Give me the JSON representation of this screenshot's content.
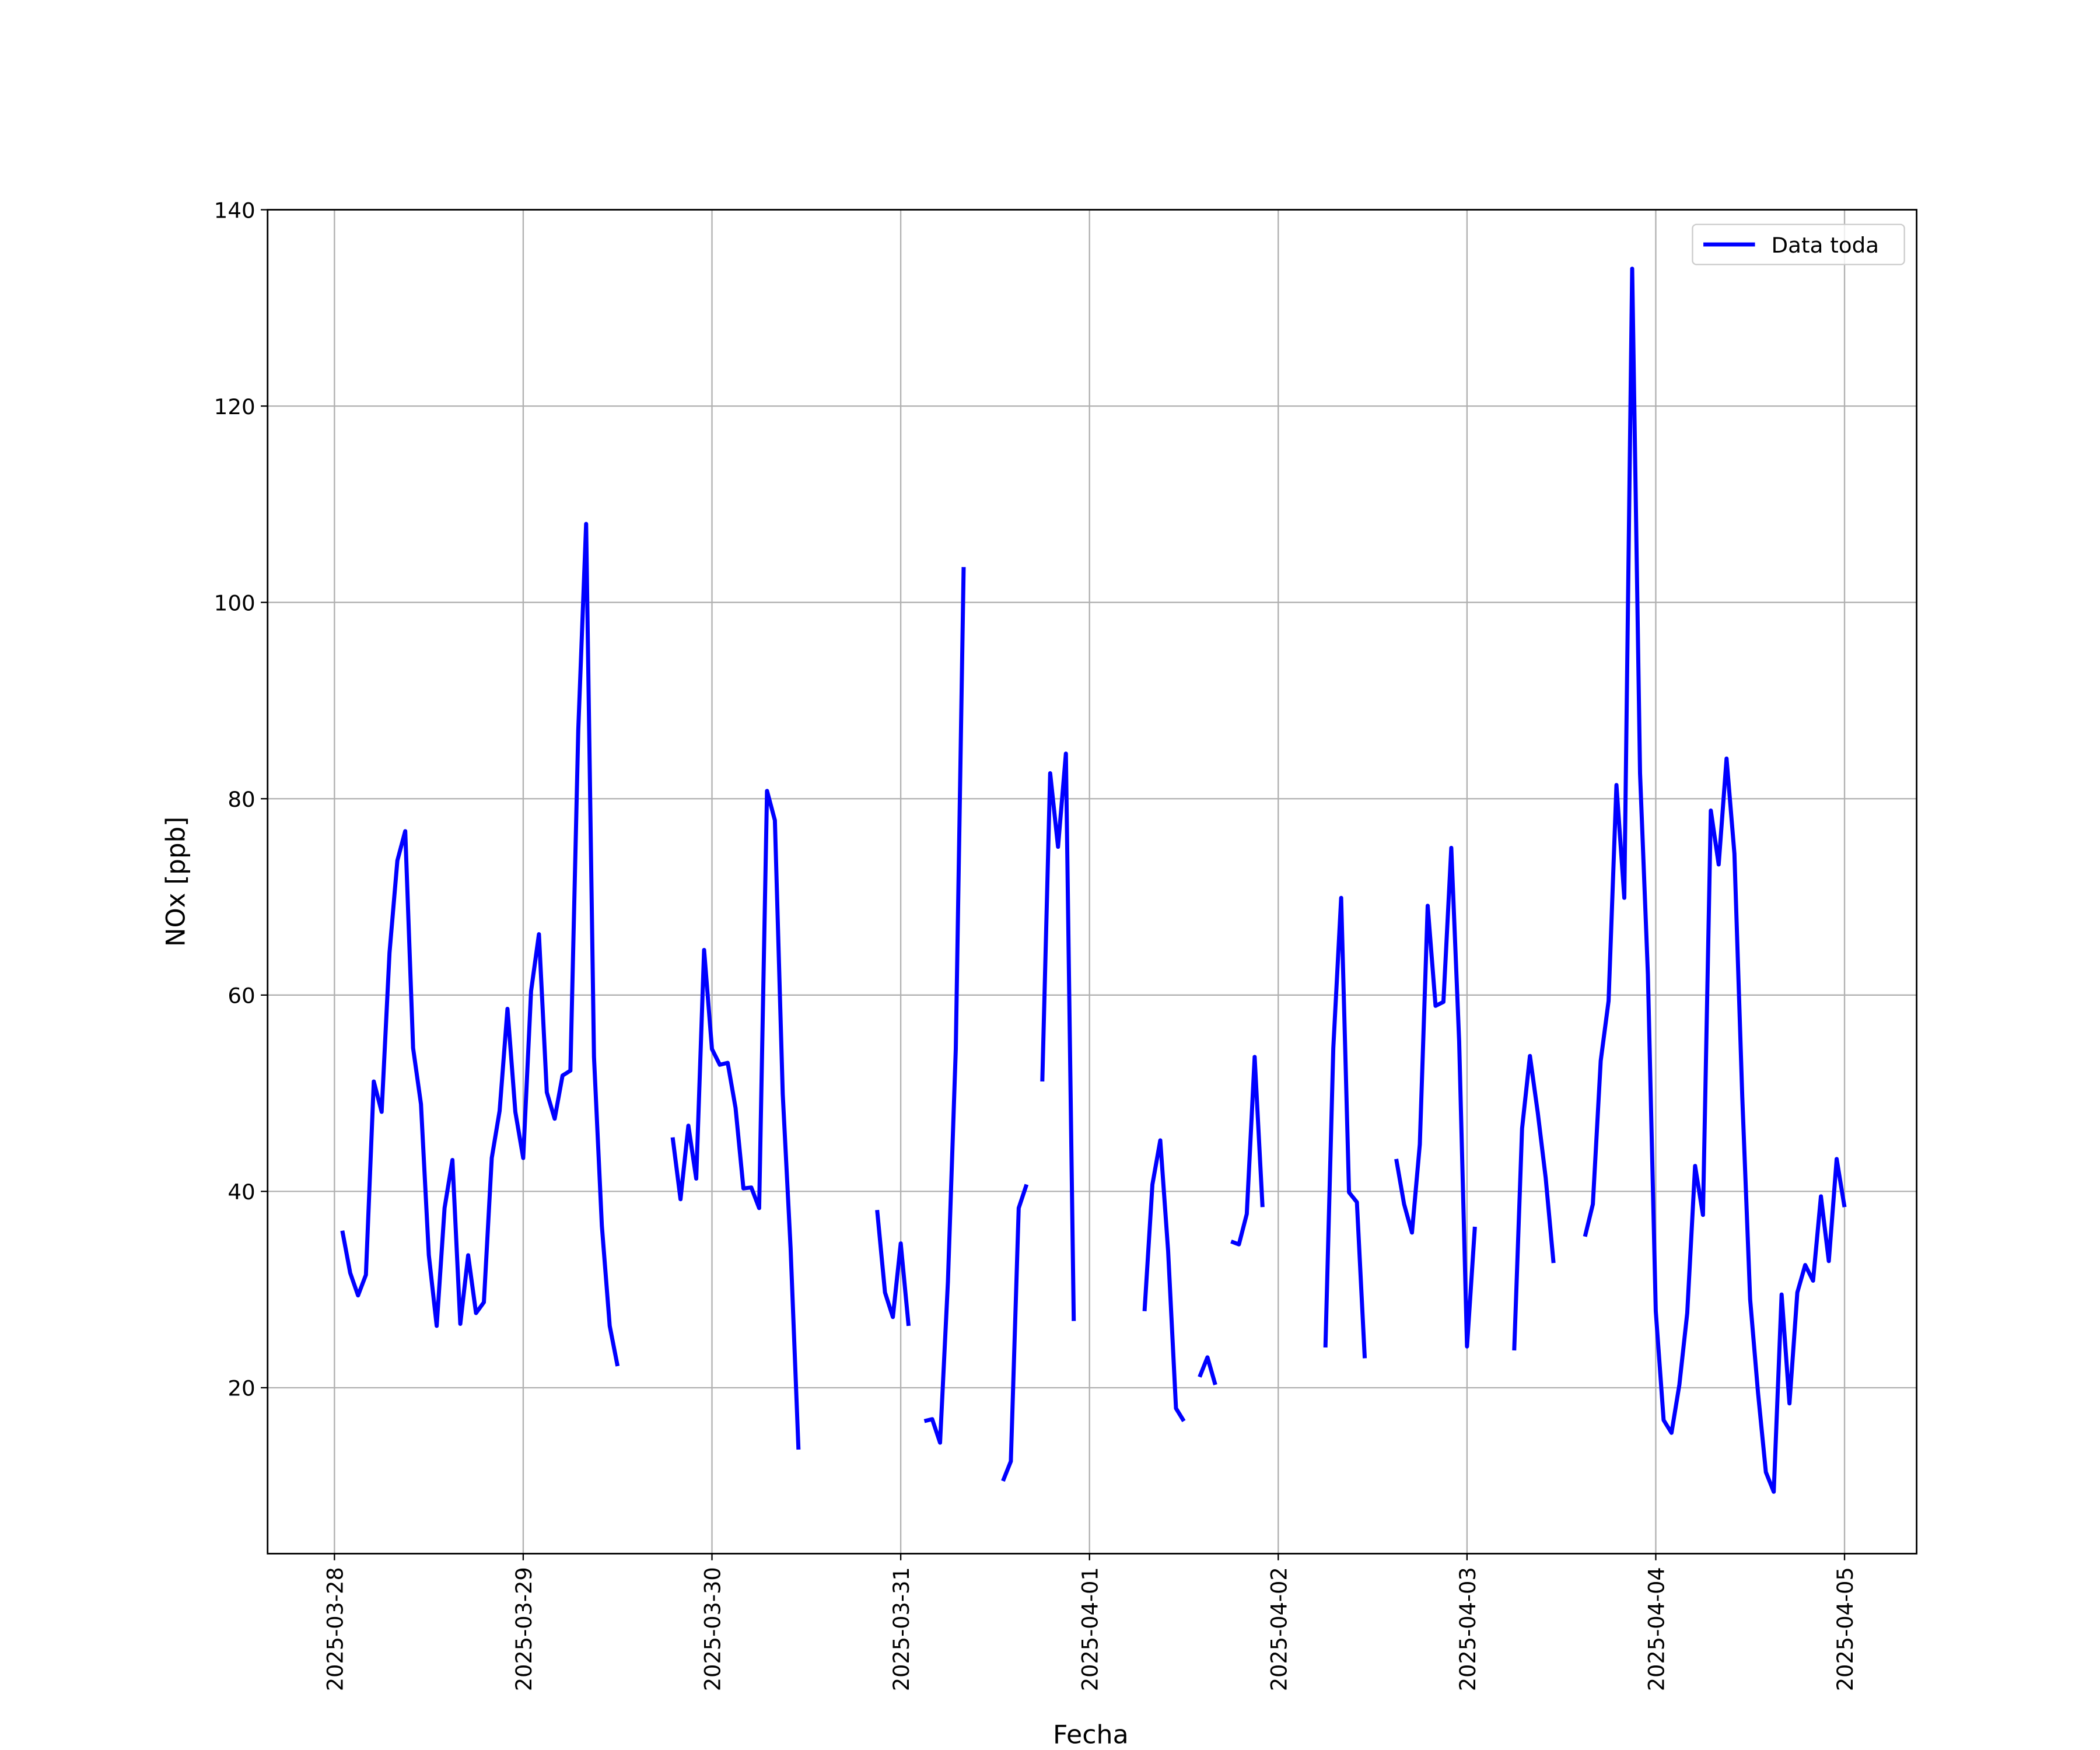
{
  "chart_data": {
    "type": "line",
    "xlabel": "Fecha",
    "ylabel": "NOx [ppb]",
    "x": [
      "2025-03-28 01:00",
      "2025-03-28 02:00",
      "2025-03-28 03:00",
      "2025-03-28 04:00",
      "2025-03-28 05:00",
      "2025-03-28 06:00",
      "2025-03-28 07:00",
      "2025-03-28 08:00",
      "2025-03-28 09:00",
      "2025-03-28 10:00",
      "2025-03-28 11:00",
      "2025-03-28 12:00",
      "2025-03-28 13:00",
      "2025-03-28 14:00",
      "2025-03-28 15:00",
      "2025-03-28 16:00",
      "2025-03-28 17:00",
      "2025-03-28 18:00",
      "2025-03-28 19:00",
      "2025-03-28 20:00",
      "2025-03-28 21:00",
      "2025-03-28 22:00",
      "2025-03-28 23:00",
      "2025-03-29 00:00",
      "2025-03-29 01:00",
      "2025-03-29 02:00",
      "2025-03-29 03:00",
      "2025-03-29 04:00",
      "2025-03-29 05:00",
      "2025-03-29 06:00",
      "2025-03-29 07:00",
      "2025-03-29 08:00",
      "2025-03-29 09:00",
      "2025-03-29 10:00",
      "2025-03-29 11:00",
      "2025-03-29 12:00",
      "2025-03-29 13:00",
      "2025-03-29 14:00",
      "2025-03-29 15:00",
      "2025-03-29 16:00",
      "2025-03-29 17:00",
      "2025-03-29 18:00",
      "2025-03-29 19:00",
      "2025-03-29 20:00",
      "2025-03-29 21:00",
      "2025-03-29 22:00",
      "2025-03-29 23:00",
      "2025-03-30 00:00",
      "2025-03-30 01:00",
      "2025-03-30 02:00",
      "2025-03-30 03:00",
      "2025-03-30 04:00",
      "2025-03-30 05:00",
      "2025-03-30 06:00",
      "2025-03-30 07:00",
      "2025-03-30 08:00",
      "2025-03-30 09:00",
      "2025-03-30 10:00",
      "2025-03-30 11:00",
      "2025-03-30 12:00",
      "2025-03-30 13:00",
      "2025-03-30 14:00",
      "2025-03-30 15:00",
      "2025-03-30 16:00",
      "2025-03-30 17:00",
      "2025-03-30 18:00",
      "2025-03-30 19:00",
      "2025-03-30 20:00",
      "2025-03-30 21:00",
      "2025-03-30 22:00",
      "2025-03-30 23:00",
      "2025-03-31 00:00",
      "2025-03-31 01:00",
      "2025-03-31 02:00",
      "2025-03-31 03:00",
      "2025-03-31 04:00",
      "2025-03-31 05:00",
      "2025-03-31 06:00",
      "2025-03-31 07:00",
      "2025-03-31 08:00",
      "2025-03-31 09:00",
      "2025-03-31 10:00",
      "2025-03-31 11:00",
      "2025-03-31 12:00",
      "2025-03-31 13:00",
      "2025-03-31 14:00",
      "2025-03-31 15:00",
      "2025-03-31 16:00",
      "2025-03-31 17:00",
      "2025-03-31 18:00",
      "2025-03-31 19:00",
      "2025-03-31 20:00",
      "2025-03-31 21:00",
      "2025-03-31 22:00",
      "2025-03-31 23:00",
      "2025-04-01 00:00",
      "2025-04-01 01:00",
      "2025-04-01 02:00",
      "2025-04-01 03:00",
      "2025-04-01 04:00",
      "2025-04-01 05:00",
      "2025-04-01 06:00",
      "2025-04-01 07:00",
      "2025-04-01 08:00",
      "2025-04-01 09:00",
      "2025-04-01 10:00",
      "2025-04-01 11:00",
      "2025-04-01 12:00",
      "2025-04-01 13:00",
      "2025-04-01 14:00",
      "2025-04-01 15:00",
      "2025-04-01 16:00",
      "2025-04-01 17:00",
      "2025-04-01 18:00",
      "2025-04-01 19:00",
      "2025-04-01 20:00",
      "2025-04-01 21:00",
      "2025-04-01 22:00",
      "2025-04-01 23:00",
      "2025-04-02 00:00",
      "2025-04-02 01:00",
      "2025-04-02 02:00",
      "2025-04-02 03:00",
      "2025-04-02 04:00",
      "2025-04-02 05:00",
      "2025-04-02 06:00",
      "2025-04-02 07:00",
      "2025-04-02 08:00",
      "2025-04-02 09:00",
      "2025-04-02 10:00",
      "2025-04-02 11:00",
      "2025-04-02 12:00",
      "2025-04-02 13:00",
      "2025-04-02 14:00",
      "2025-04-02 15:00",
      "2025-04-02 16:00",
      "2025-04-02 17:00",
      "2025-04-02 18:00",
      "2025-04-02 19:00",
      "2025-04-02 20:00",
      "2025-04-02 21:00",
      "2025-04-02 22:00",
      "2025-04-02 23:00",
      "2025-04-03 00:00",
      "2025-04-03 01:00",
      "2025-04-03 02:00",
      "2025-04-03 03:00",
      "2025-04-03 04:00",
      "2025-04-03 05:00",
      "2025-04-03 06:00",
      "2025-04-03 07:00",
      "2025-04-03 08:00",
      "2025-04-03 09:00",
      "2025-04-03 10:00",
      "2025-04-03 11:00",
      "2025-04-03 12:00",
      "2025-04-03 13:00",
      "2025-04-03 14:00",
      "2025-04-03 15:00",
      "2025-04-03 16:00",
      "2025-04-03 17:00",
      "2025-04-03 18:00",
      "2025-04-03 19:00",
      "2025-04-03 20:00",
      "2025-04-03 21:00",
      "2025-04-03 22:00",
      "2025-04-03 23:00",
      "2025-04-04 00:00",
      "2025-04-04 01:00",
      "2025-04-04 02:00",
      "2025-04-04 03:00",
      "2025-04-04 04:00",
      "2025-04-04 05:00",
      "2025-04-04 06:00",
      "2025-04-04 07:00",
      "2025-04-04 08:00",
      "2025-04-04 09:00",
      "2025-04-04 10:00",
      "2025-04-04 11:00",
      "2025-04-04 12:00",
      "2025-04-04 13:00",
      "2025-04-04 14:00",
      "2025-04-04 15:00",
      "2025-04-04 16:00",
      "2025-04-04 17:00",
      "2025-04-04 18:00",
      "2025-04-04 19:00",
      "2025-04-04 20:00",
      "2025-04-04 21:00",
      "2025-04-04 22:00",
      "2025-04-04 23:00",
      "2025-04-05 00:00"
    ],
    "series": [
      {
        "name": "Data toda",
        "color": "#0000ff",
        "values": [
          36.0,
          31.7,
          29.4,
          31.5,
          51.2,
          48.1,
          64.3,
          73.7,
          76.7,
          54.6,
          48.9,
          33.5,
          26.3,
          38.3,
          43.2,
          26.5,
          33.5,
          27.6,
          28.7,
          43.4,
          48.2,
          58.6,
          48.1,
          43.4,
          60.4,
          66.2,
          50.1,
          47.4,
          51.8,
          52.3,
          87.0,
          108.0,
          53.7,
          36.5,
          26.3,
          22.2,
          null,
          null,
          null,
          null,
          null,
          null,
          45.5,
          39.2,
          46.7,
          41.3,
          64.6,
          54.5,
          52.9,
          53.1,
          48.5,
          40.3,
          40.4,
          38.3,
          80.8,
          77.8,
          49.9,
          34.2,
          13.7,
          null,
          null,
          null,
          null,
          null,
          null,
          null,
          null,
          null,
          38.1,
          29.7,
          27.2,
          34.7,
          26.3,
          null,
          16.6,
          16.8,
          14.4,
          30.8,
          54.5,
          103.6,
          null,
          null,
          null,
          null,
          10.5,
          12.5,
          38.3,
          40.7,
          null,
          51.2,
          82.6,
          75.1,
          84.6,
          26.8,
          null,
          null,
          null,
          null,
          null,
          null,
          null,
          null,
          27.8,
          40.7,
          45.2,
          33.9,
          17.9,
          16.6,
          null,
          21.1,
          23.1,
          20.3,
          null,
          34.9,
          34.6,
          37.7,
          53.7,
          38.4,
          null,
          null,
          null,
          null,
          null,
          null,
          null,
          24.1,
          54.6,
          69.9,
          39.9,
          38.9,
          23.0,
          null,
          null,
          null,
          43.3,
          38.7,
          35.8,
          44.8,
          69.1,
          58.9,
          59.3,
          75.0,
          55.3,
          24.2,
          36.4,
          null,
          null,
          null,
          null,
          23.8,
          46.4,
          53.8,
          48.0,
          41.4,
          32.7,
          null,
          null,
          null,
          35.4,
          38.7,
          53.3,
          59.4,
          81.4,
          69.9,
          134.0,
          82.6,
          62.1,
          27.8,
          16.7,
          15.4,
          20.3,
          27.6,
          42.6,
          37.6,
          78.8,
          73.3,
          84.1,
          74.4,
          49.6,
          29.0,
          19.5,
          11.4,
          9.4,
          29.5,
          18.4,
          29.7,
          32.5,
          30.9,
          39.5,
          32.9,
          43.3,
          38.4
        ]
      }
    ],
    "xlim": [
      "2025-03-27 15:30",
      "2025-04-05 09:10"
    ],
    "xticks": [
      "2025-03-28",
      "2025-03-29",
      "2025-03-30",
      "2025-03-31",
      "2025-04-01",
      "2025-04-02",
      "2025-04-03",
      "2025-04-04",
      "2025-04-05"
    ],
    "ylim": [
      3.1,
      140
    ],
    "yticks": [
      20,
      40,
      60,
      80,
      100,
      120,
      140
    ],
    "grid": true,
    "legend": "upper right"
  }
}
